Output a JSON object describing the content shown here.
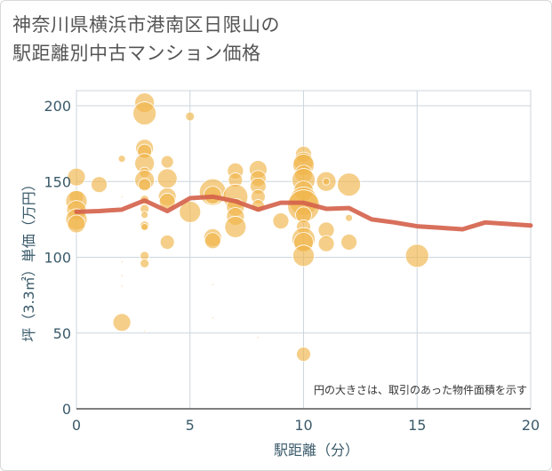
{
  "title_lines": [
    "神奈川県横浜市港南区日限山の",
    "駅距離別中古マンション価格"
  ],
  "chart_data": {
    "type": "scatter",
    "title": "神奈川県横浜市港南区日限山の駅距離別中古マンション価格",
    "xlabel": "駅距離（分）",
    "ylabel": "坪（3.3㎡）単価（万円）",
    "xlim": [
      0,
      20
    ],
    "ylim": [
      0,
      210
    ],
    "x_ticks": [
      0,
      5,
      10,
      15,
      20
    ],
    "y_ticks": [
      0,
      50,
      100,
      150,
      200
    ],
    "grid": true,
    "annotation": "円の大きさは、取引のあった物件面積を示す",
    "colors": {
      "bubble": "#f0b54a",
      "line": "#d4604a",
      "grid": "#ccd6dd"
    },
    "points": [
      {
        "x": 0,
        "y": 153,
        "s": 10
      },
      {
        "x": 0,
        "y": 140,
        "s": 8
      },
      {
        "x": 0,
        "y": 137,
        "s": 12
      },
      {
        "x": 0,
        "y": 131,
        "s": 11
      },
      {
        "x": 0,
        "y": 125,
        "s": 12
      },
      {
        "x": 0,
        "y": 122,
        "s": 10
      },
      {
        "x": 1,
        "y": 148,
        "s": 9
      },
      {
        "x": 2,
        "y": 165,
        "s": 4
      },
      {
        "x": 2,
        "y": 140,
        "s": 1
      },
      {
        "x": 2,
        "y": 97,
        "s": 1
      },
      {
        "x": 2,
        "y": 88,
        "s": 1
      },
      {
        "x": 2,
        "y": 81,
        "s": 1
      },
      {
        "x": 2,
        "y": 57,
        "s": 10
      },
      {
        "x": 3,
        "y": 202,
        "s": 11
      },
      {
        "x": 3,
        "y": 195,
        "s": 13
      },
      {
        "x": 3,
        "y": 172,
        "s": 10
      },
      {
        "x": 3,
        "y": 170,
        "s": 8
      },
      {
        "x": 3,
        "y": 162,
        "s": 11
      },
      {
        "x": 3,
        "y": 156,
        "s": 6
      },
      {
        "x": 3,
        "y": 151,
        "s": 11
      },
      {
        "x": 3,
        "y": 148,
        "s": 7
      },
      {
        "x": 3,
        "y": 138,
        "s": 5
      },
      {
        "x": 3,
        "y": 132,
        "s": 5
      },
      {
        "x": 3,
        "y": 128,
        "s": 4
      },
      {
        "x": 3,
        "y": 121,
        "s": 5
      },
      {
        "x": 3,
        "y": 120,
        "s": 4
      },
      {
        "x": 3,
        "y": 101,
        "s": 5
      },
      {
        "x": 3,
        "y": 96,
        "s": 5
      },
      {
        "x": 3,
        "y": 51,
        "s": 1
      },
      {
        "x": 4,
        "y": 163,
        "s": 7
      },
      {
        "x": 4,
        "y": 152,
        "s": 11
      },
      {
        "x": 4,
        "y": 140,
        "s": 10
      },
      {
        "x": 4,
        "y": 137,
        "s": 9
      },
      {
        "x": 4,
        "y": 110,
        "s": 8
      },
      {
        "x": 5,
        "y": 193,
        "s": 5
      },
      {
        "x": 5,
        "y": 130,
        "s": 12
      },
      {
        "x": 6,
        "y": 143,
        "s": 15
      },
      {
        "x": 6,
        "y": 141,
        "s": 10
      },
      {
        "x": 6,
        "y": 113,
        "s": 10
      },
      {
        "x": 6,
        "y": 111,
        "s": 9
      },
      {
        "x": 6,
        "y": 82,
        "s": 1
      },
      {
        "x": 6,
        "y": 60,
        "s": 1
      },
      {
        "x": 7,
        "y": 157,
        "s": 9
      },
      {
        "x": 7,
        "y": 151,
        "s": 8
      },
      {
        "x": 7,
        "y": 140,
        "s": 14
      },
      {
        "x": 7,
        "y": 133,
        "s": 10
      },
      {
        "x": 7,
        "y": 127,
        "s": 10
      },
      {
        "x": 7,
        "y": 120,
        "s": 12
      },
      {
        "x": 8,
        "y": 158,
        "s": 10
      },
      {
        "x": 8,
        "y": 152,
        "s": 9
      },
      {
        "x": 8,
        "y": 147,
        "s": 9
      },
      {
        "x": 8,
        "y": 140,
        "s": 8
      },
      {
        "x": 8,
        "y": 134,
        "s": 7
      },
      {
        "x": 8,
        "y": 47,
        "s": 1
      },
      {
        "x": 9,
        "y": 124,
        "s": 9
      },
      {
        "x": 10,
        "y": 168,
        "s": 9
      },
      {
        "x": 10,
        "y": 163,
        "s": 11
      },
      {
        "x": 10,
        "y": 161,
        "s": 12
      },
      {
        "x": 10,
        "y": 155,
        "s": 10
      },
      {
        "x": 10,
        "y": 151,
        "s": 13
      },
      {
        "x": 10,
        "y": 144,
        "s": 11
      },
      {
        "x": 10,
        "y": 137,
        "s": 16
      },
      {
        "x": 10,
        "y": 134,
        "s": 18
      },
      {
        "x": 10,
        "y": 128,
        "s": 9
      },
      {
        "x": 10,
        "y": 120,
        "s": 8
      },
      {
        "x": 10,
        "y": 112,
        "s": 13
      },
      {
        "x": 10,
        "y": 110,
        "s": 11
      },
      {
        "x": 10,
        "y": 101,
        "s": 12
      },
      {
        "x": 10,
        "y": 36,
        "s": 8
      },
      {
        "x": 11,
        "y": 150,
        "s": 11
      },
      {
        "x": 11,
        "y": 150,
        "s": 4
      },
      {
        "x": 11,
        "y": 118,
        "s": 9
      },
      {
        "x": 11,
        "y": 109,
        "s": 9
      },
      {
        "x": 12,
        "y": 148,
        "s": 13
      },
      {
        "x": 12,
        "y": 126,
        "s": 4
      },
      {
        "x": 12,
        "y": 110,
        "s": 9
      },
      {
        "x": 15,
        "y": 101,
        "s": 13
      }
    ],
    "series": [
      {
        "type": "line",
        "x": [
          0,
          1,
          2,
          3,
          4,
          5,
          6,
          7,
          8,
          9,
          10,
          11,
          12,
          13,
          14,
          15,
          16,
          17,
          18,
          19,
          20
        ],
        "values": [
          130,
          130.5,
          131.5,
          137.5,
          130.5,
          139,
          140,
          137,
          131.5,
          136,
          136,
          132,
          132.5,
          125,
          123,
          120.5,
          119.5,
          118.5,
          123,
          122,
          121
        ]
      }
    ]
  }
}
